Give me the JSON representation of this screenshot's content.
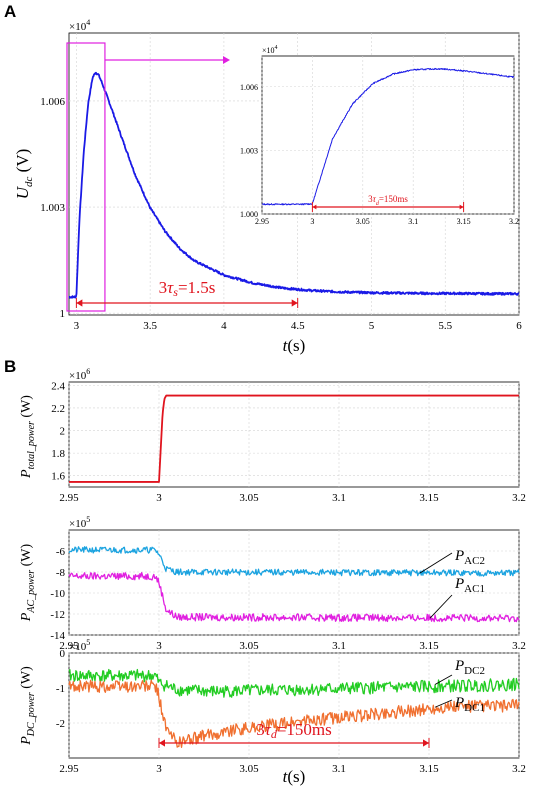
{
  "panel_labels": {
    "a": "A",
    "b": "B"
  },
  "chart_data": [
    {
      "type": "line",
      "id": "main-udc",
      "xlabel": "t(s)",
      "ylabel": "U_dc (V)",
      "multiplier": "×10^4",
      "xlim": [
        2.95,
        6.0
      ],
      "ylim": [
        0.99995,
        1.00792
      ],
      "xticks": [
        3,
        3.5,
        4,
        4.5,
        5,
        5.5,
        6
      ],
      "xtick_labels": [
        "3",
        "3.5",
        "4",
        "4.5",
        "5",
        "5.5",
        "6"
      ],
      "yticks": [
        1.0,
        1.003,
        1.006
      ],
      "ytick_labels": [
        "1",
        "1.003",
        "1.006"
      ],
      "grid": true,
      "color": "#1a1ae6",
      "series": [
        {
          "x": [
            2.95,
            2.99,
            3.0,
            3.02,
            3.05,
            3.08,
            3.11,
            3.13,
            3.15,
            3.17,
            3.2,
            3.25,
            3.3,
            3.4,
            3.5,
            3.6,
            3.7,
            3.8,
            4.0,
            4.2,
            4.4,
            4.6,
            4.8,
            5.0,
            5.2,
            5.4,
            5.6,
            5.8,
            6.0
          ],
          "y": [
            1.00046,
            1.00046,
            1.00048,
            1.0026,
            1.00455,
            1.00593,
            1.00666,
            1.00681,
            1.00674,
            1.00655,
            1.00622,
            1.00565,
            1.00505,
            1.0039,
            1.00298,
            1.00232,
            1.00183,
            1.00148,
            1.00108,
            1.00085,
            1.00071,
            1.00064,
            1.0006,
            1.00058,
            1.00057,
            1.00056,
            1.00056,
            1.00055,
            1.00055
          ]
        }
      ],
      "annotation": {
        "text_main": "3",
        "text_tau": "τ",
        "text_sub": "s",
        "text_rest": "=1.5s",
        "from": 3.0,
        "to": 4.5
      }
    },
    {
      "type": "line",
      "id": "inset-udc",
      "multiplier": "×10^4",
      "xlim": [
        2.95,
        3.2
      ],
      "ylim": [
        1.0,
        1.00745
      ],
      "xticks": [
        2.95,
        3,
        3.05,
        3.1,
        3.15,
        3.2
      ],
      "xtick_labels": [
        "2.95",
        "3",
        "3.05",
        "3.1",
        "3.15",
        "3.2"
      ],
      "yticks": [
        1.0,
        1.003,
        1.006
      ],
      "ytick_labels": [
        "1.000",
        "1.003",
        "1.006"
      ],
      "grid": true,
      "color": "#1a1ae6",
      "series": [
        {
          "x": [
            2.95,
            2.99,
            3.0,
            3.02,
            3.04,
            3.06,
            3.08,
            3.1,
            3.12,
            3.13,
            3.15,
            3.17,
            3.2
          ],
          "y": [
            1.00046,
            1.00046,
            1.00048,
            1.00355,
            1.0052,
            1.00615,
            1.0066,
            1.0068,
            1.00684,
            1.00684,
            1.00675,
            1.00663,
            1.00645
          ]
        }
      ],
      "annotation": {
        "text_main": "3",
        "text_tau": "τ",
        "text_sub": "d",
        "text_rest": "=150ms",
        "from": 3.0,
        "to": 3.15
      }
    },
    {
      "type": "line",
      "id": "total-power",
      "ylabel": "P_total_power (W)",
      "multiplier": "×10^6",
      "xlim": [
        2.95,
        3.2
      ],
      "ylim": [
        1.5,
        2.43
      ],
      "xticks": [
        2.95,
        3,
        3.05,
        3.1,
        3.15,
        3.2
      ],
      "xtick_labels": [
        "2.95",
        "3",
        "3.05",
        "3.1",
        "3.15",
        "3.2"
      ],
      "yticks": [
        1.6,
        1.8,
        2.0,
        2.2,
        2.4
      ],
      "ytick_labels": [
        "1.6",
        "1.8",
        "2",
        "2.2",
        "2.4"
      ],
      "grid": true,
      "series": [
        {
          "color": "#e0141e",
          "x": [
            2.95,
            3.0,
            3.001,
            3.002,
            3.003,
            3.004,
            3.2
          ],
          "y": [
            1.545,
            1.545,
            1.85,
            2.15,
            2.28,
            2.31,
            2.31
          ]
        }
      ]
    },
    {
      "type": "line",
      "id": "ac-power",
      "ylabel": "P_AC_power (W)",
      "multiplier": "×10^5",
      "xlim": [
        2.95,
        3.2
      ],
      "ylim": [
        -14.0,
        -4.0
      ],
      "xticks": [
        2.95,
        3,
        3.05,
        3.1,
        3.15,
        3.2
      ],
      "xtick_labels": [
        "2.95",
        "3",
        "3.05",
        "3.1",
        "3.15",
        "3.2"
      ],
      "yticks": [
        -14,
        -12,
        -10,
        -8,
        -6
      ],
      "ytick_labels": [
        "-14",
        "-12",
        "-10",
        "-8",
        "-6"
      ],
      "grid": true,
      "series": [
        {
          "name": "P_AC2",
          "color": "#1ba3e0",
          "x": [
            2.95,
            2.998,
            3.0,
            3.004,
            3.01,
            3.2
          ],
          "y": [
            -5.9,
            -5.9,
            -6.3,
            -7.7,
            -8.0,
            -8.1
          ],
          "noise": 0.3
        },
        {
          "name": "P_AC1",
          "color": "#e020e0",
          "x": [
            2.95,
            2.998,
            3.0,
            3.004,
            3.01,
            3.2
          ],
          "y": [
            -8.4,
            -8.4,
            -9.0,
            -11.6,
            -12.3,
            -12.4
          ],
          "noise": 0.35
        }
      ],
      "labels": {
        "ac2_main": "P",
        "ac2_sub": "AC2",
        "ac1_main": "P",
        "ac1_sub": "AC1"
      }
    },
    {
      "type": "line",
      "id": "dc-power",
      "ylabel": "P_DC_power (W)",
      "xlabel": "t(s)",
      "multiplier": "×10^5",
      "xlim": [
        2.95,
        3.2
      ],
      "ylim": [
        -3.0,
        0.0
      ],
      "xticks": [
        2.95,
        3,
        3.05,
        3.1,
        3.15,
        3.2
      ],
      "xtick_labels": [
        "2.95",
        "3",
        "3.05",
        "3.1",
        "3.15",
        "3.2"
      ],
      "yticks": [
        -2,
        -1,
        0
      ],
      "ytick_labels": [
        "-2",
        "-1",
        "0"
      ],
      "grid": true,
      "series": [
        {
          "name": "P_DC2",
          "color": "#22cc22",
          "x": [
            2.95,
            2.998,
            3.0,
            3.01,
            3.03,
            3.2
          ],
          "y": [
            -0.65,
            -0.65,
            -0.85,
            -1.05,
            -1.1,
            -0.9
          ],
          "noise": 0.18
        },
        {
          "name": "P_DC1",
          "color": "#f07030",
          "x": [
            2.95,
            2.998,
            3.0,
            3.004,
            3.01,
            3.04,
            3.08,
            3.12,
            3.16,
            3.2
          ],
          "y": [
            -0.95,
            -0.95,
            -1.25,
            -2.2,
            -2.55,
            -2.2,
            -1.95,
            -1.75,
            -1.55,
            -1.5
          ],
          "noise": 0.18
        }
      ],
      "labels": {
        "dc2_main": "P",
        "dc2_sub": "DC2",
        "dc1_main": "P",
        "dc1_sub": "DC1"
      },
      "annotation": {
        "text_main": "3",
        "text_tau": "τ",
        "text_sub": "d",
        "text_rest": "=150ms",
        "from": 3.0,
        "to": 3.15
      }
    }
  ]
}
